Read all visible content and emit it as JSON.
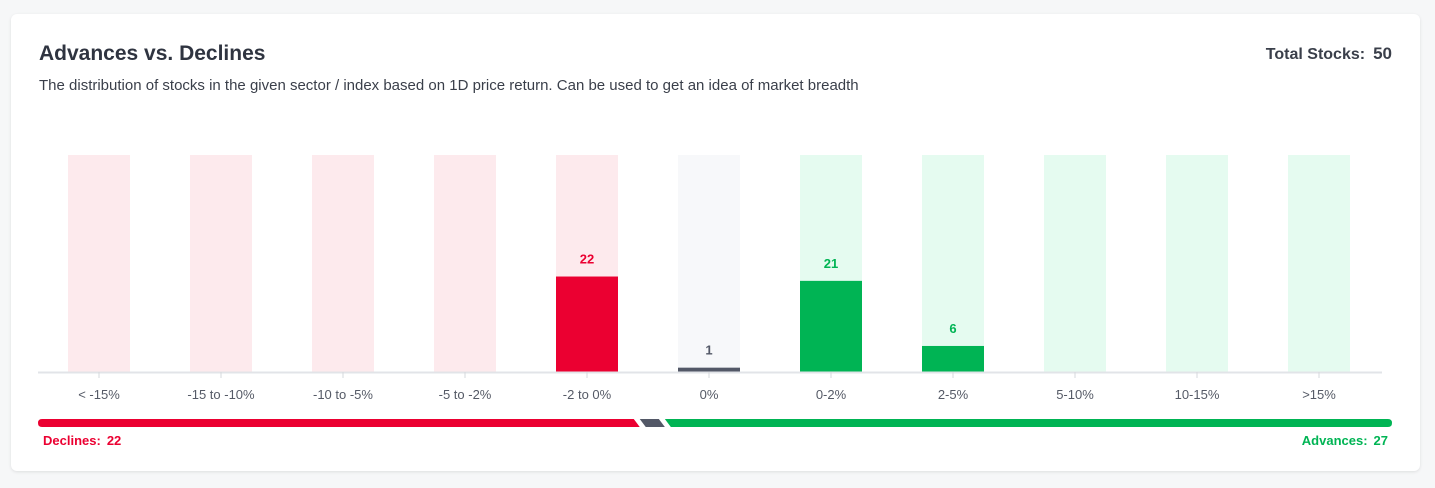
{
  "header": {
    "title": "Advances vs. Declines",
    "subtitle": "The distribution of stocks in the given sector / index based on 1D price return. Can be used to get an idea of market breadth",
    "total_label": "Total Stocks:",
    "total_value": "50"
  },
  "breadth": {
    "declines_label": "Declines:",
    "declines_value": "22",
    "advances_label": "Advances:",
    "advances_value": "27",
    "unchanged_value": 1
  },
  "colors": {
    "decline": "#eb0031",
    "decline_bg": "#fdeaed",
    "neutral": "#535867",
    "neutral_bg": "#f7f8fa",
    "advance": "#00b454",
    "advance_bg": "#e5fbf0"
  },
  "chart_data": {
    "type": "bar",
    "categories": [
      "< -15%",
      "-15 to -10%",
      "-10 to -5%",
      "-5 to -2%",
      "-2 to 0%",
      "0%",
      "0-2%",
      "2-5%",
      "5-10%",
      "10-15%",
      ">15%"
    ],
    "values": [
      0,
      0,
      0,
      0,
      22,
      1,
      21,
      6,
      0,
      0,
      0
    ],
    "groups": [
      "decline",
      "decline",
      "decline",
      "decline",
      "decline",
      "neutral",
      "advance",
      "advance",
      "advance",
      "advance",
      "advance"
    ],
    "title": "Advances vs. Declines",
    "xlabel": "",
    "ylabel": "",
    "ylim": [
      0,
      50
    ],
    "grid": false
  }
}
